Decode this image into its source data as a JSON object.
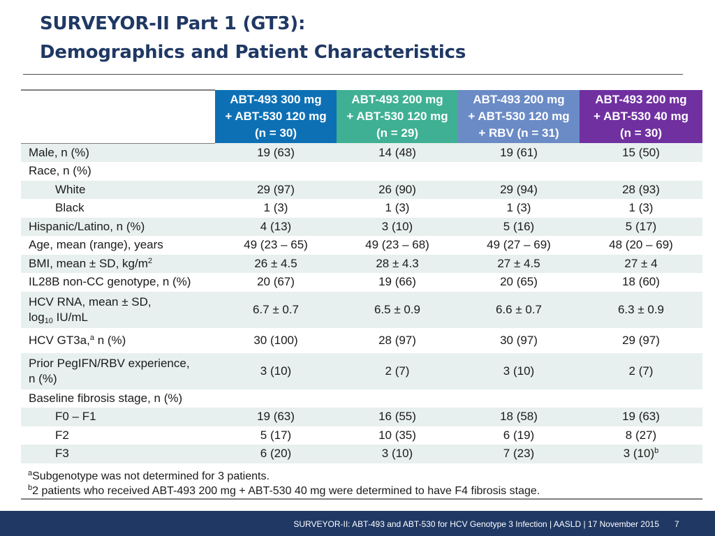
{
  "title": {
    "line1": "SURVEYOR-II Part 1 (GT3):",
    "line2": "Demographics and Patient Characteristics"
  },
  "columns": [
    {
      "l1": "ABT-493 300 mg",
      "l2": "+ ABT-530 120 mg",
      "l3": "(n = 30)",
      "color": "#0d70b5"
    },
    {
      "l1": "ABT-493 200 mg",
      "l2": "+ ABT-530 120 mg",
      "l3": "(n = 29)",
      "color": "#3fb093"
    },
    {
      "l1": "ABT-493 200 mg",
      "l2": "+ ABT-530 120 mg",
      "l3": "+ RBV (n = 31)",
      "color": "#6b8bc6"
    },
    {
      "l1": "ABT-493 200 mg",
      "l2": "+ ABT-530 40 mg",
      "l3": "(n = 30)",
      "color": "#7030a0"
    }
  ],
  "rows": {
    "male": {
      "label": "Male, n (%)",
      "v": [
        "19 (63)",
        "14 (48)",
        "19 (61)",
        "15 (50)"
      ]
    },
    "race": {
      "label": "Race, n (%)"
    },
    "white": {
      "label": "White",
      "v": [
        "29 (97)",
        "26 (90)",
        "29 (94)",
        "28 (93)"
      ]
    },
    "black": {
      "label": "Black",
      "v": [
        "1 (3)",
        "1 (3)",
        "1 (3)",
        "1 (3)"
      ]
    },
    "hispanic": {
      "label": "Hispanic/Latino, n (%)",
      "v": [
        "4 (13)",
        "3 (10)",
        "5 (16)",
        "5 (17)"
      ]
    },
    "age": {
      "label": "Age, mean (range), years",
      "v": [
        "49 (23 – 65)",
        "49 (23 – 68)",
        "49 (27 – 69)",
        "48 (20 – 69)"
      ]
    },
    "bmi": {
      "label": "BMI, mean ± SD, kg/m",
      "sup": "2",
      "v": [
        "26 ± 4.5",
        "28 ± 4.3",
        "27 ± 4.5",
        "27 ± 4"
      ]
    },
    "il28b": {
      "label": "IL28B non-CC genotype, n (%)",
      "v": [
        "20 (67)",
        "19 (66)",
        "20 (65)",
        "18 (60)"
      ]
    },
    "hcvrna": {
      "label1": "HCV RNA, mean ± SD,",
      "label2a": "log",
      "label2sub": "10",
      "label2b": " IU/mL",
      "v": [
        "6.7 ± 0.7",
        "6.5 ± 0.9",
        "6.6 ± 0.7",
        "6.3 ± 0.9"
      ]
    },
    "gt3a": {
      "label_a": "HCV GT3a,",
      "sup": "a",
      "label_b": " n (%)",
      "v": [
        "30 (100)",
        "28 (97)",
        "30 (97)",
        "29 (97)"
      ]
    },
    "prior": {
      "label1": "Prior PegIFN/RBV experience,",
      "label2": "n (%)",
      "v": [
        "3 (10)",
        "2 (7)",
        "3 (10)",
        "2 (7)"
      ]
    },
    "fibrosis": {
      "label": "Baseline fibrosis stage, n (%)"
    },
    "f0f1": {
      "label": "F0 – F1",
      "v": [
        "19 (63)",
        "16 (55)",
        "18 (58)",
        "19 (63)"
      ]
    },
    "f2": {
      "label": "F2",
      "v": [
        "5 (17)",
        "10 (35)",
        "6 (19)",
        "8 (27)"
      ]
    },
    "f3": {
      "label": "F3",
      "v": [
        "6 (20)",
        "3 (10)",
        "7 (23)",
        "3 (10)"
      ],
      "last_sup": "b"
    }
  },
  "footnotes": {
    "a_mark": "a",
    "a_text": "Subgenotype was not determined for 3 patients.",
    "b_mark": "b",
    "b_text": "2 patients who received ABT-493 200 mg + ABT-530 40 mg were determined to have F4 fibrosis stage."
  },
  "footer": {
    "text": "SURVEYOR-II: ABT-493 and ABT-530 for HCV Genotype 3 Infection   | AASLD | 17 November 2015",
    "page": "7"
  }
}
